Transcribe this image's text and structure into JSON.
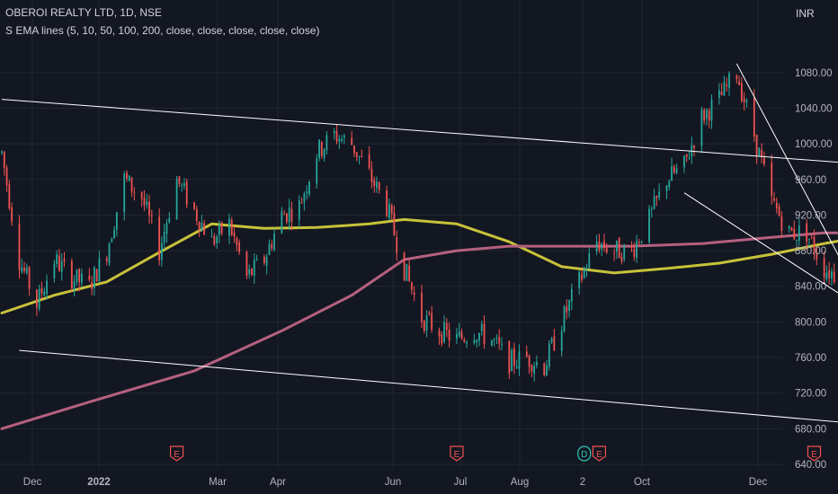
{
  "header": {
    "title": "OBEROI REALTY LTD, 1D, NSE",
    "indicator": "S EMA lines (5, 10, 50, 100, 200, close, close, close, close, close)",
    "currency": "INR"
  },
  "colors": {
    "background": "#131722",
    "grid": "#222631",
    "up": "#26a69a",
    "down": "#ef5350",
    "ema_yellow": "#c8c23a",
    "ema_pink": "#b5607f",
    "trendline": "#ffffff",
    "axis_text": "#b2b5be",
    "earnings": "#f0524f",
    "dividend": "#2cc5b5"
  },
  "chart_data": {
    "type": "candlestick",
    "symbol": "OBEROI REALTY LTD",
    "interval": "1D",
    "exchange": "NSE",
    "ylim": [
      640,
      1100
    ],
    "y_ticks": [
      "1080.00",
      "1040.00",
      "1000.00",
      "960.00",
      "920.00",
      "880.00",
      "840.00",
      "800.00",
      "760.00",
      "720.00",
      "680.00",
      "640.00"
    ],
    "x_ticks": [
      {
        "label": "Dec",
        "bold": false
      },
      {
        "label": "2022",
        "bold": true
      },
      {
        "label": "Mar",
        "bold": false
      },
      {
        "label": "Apr",
        "bold": false
      },
      {
        "label": "Jun",
        "bold": false
      },
      {
        "label": "Jul",
        "bold": false
      },
      {
        "label": "Aug",
        "bold": false
      },
      {
        "label": "2",
        "bold": false
      },
      {
        "label": "Oct",
        "bold": false
      },
      {
        "label": "Dec",
        "bold": false
      }
    ],
    "price_path": [
      [
        "2021-11-22",
        990
      ],
      [
        "2021-11-29",
        870
      ],
      [
        "2021-12-06",
        820
      ],
      [
        "2021-12-13",
        870
      ],
      [
        "2021-12-20",
        850
      ],
      [
        "2021-12-27",
        840
      ],
      [
        "2022-01-03",
        880
      ],
      [
        "2022-01-10",
        960
      ],
      [
        "2022-01-17",
        940
      ],
      [
        "2022-01-24",
        880
      ],
      [
        "2022-01-31",
        960
      ],
      [
        "2022-02-07",
        925
      ],
      [
        "2022-02-14",
        890
      ],
      [
        "2022-02-21",
        910
      ],
      [
        "2022-02-28",
        850
      ],
      [
        "2022-03-07",
        870
      ],
      [
        "2022-03-14",
        920
      ],
      [
        "2022-03-21",
        930
      ],
      [
        "2022-03-28",
        990
      ],
      [
        "2022-04-04",
        1010
      ],
      [
        "2022-04-11",
        1000
      ],
      [
        "2022-04-18",
        965
      ],
      [
        "2022-04-25",
        930
      ],
      [
        "2022-05-02",
        860
      ],
      [
        "2022-05-09",
        805
      ],
      [
        "2022-05-16",
        790
      ],
      [
        "2022-05-23",
        780
      ],
      [
        "2022-05-30",
        790
      ],
      [
        "2022-06-06",
        780
      ],
      [
        "2022-06-13",
        755
      ],
      [
        "2022-06-20",
        760
      ],
      [
        "2022-06-27",
        750
      ],
      [
        "2022-07-04",
        800
      ],
      [
        "2022-07-11",
        845
      ],
      [
        "2022-07-18",
        890
      ],
      [
        "2022-07-25",
        880
      ],
      [
        "2022-08-01",
        880
      ],
      [
        "2022-08-08",
        915
      ],
      [
        "2022-08-15",
        960
      ],
      [
        "2022-08-22",
        975
      ],
      [
        "2022-08-29",
        1030
      ],
      [
        "2022-09-05",
        1050
      ],
      [
        "2022-09-12",
        1080
      ],
      [
        "2022-09-19",
        1010
      ],
      [
        "2022-09-26",
        935
      ],
      [
        "2022-10-03",
        900
      ],
      [
        "2022-10-10",
        900
      ],
      [
        "2022-10-17",
        860
      ],
      [
        "2022-10-24",
        850
      ],
      [
        "2022-10-31",
        895
      ]
    ],
    "series": [
      {
        "name": "EMA 50",
        "color": "yellow",
        "points": [
          [
            "2021-11-22",
            810
          ],
          [
            "2021-12-13",
            830
          ],
          [
            "2022-01-03",
            845
          ],
          [
            "2022-01-24",
            878
          ],
          [
            "2022-02-14",
            910
          ],
          [
            "2022-03-07",
            905
          ],
          [
            "2022-03-28",
            906
          ],
          [
            "2022-04-18",
            910
          ],
          [
            "2022-05-02",
            915
          ],
          [
            "2022-05-23",
            910
          ],
          [
            "2022-06-13",
            890
          ],
          [
            "2022-07-04",
            862
          ],
          [
            "2022-07-25",
            855
          ],
          [
            "2022-08-15",
            860
          ],
          [
            "2022-09-05",
            866
          ],
          [
            "2022-09-26",
            876
          ],
          [
            "2022-10-17",
            888
          ],
          [
            "2022-10-31",
            895
          ]
        ]
      },
      {
        "name": "EMA 200",
        "color": "pink",
        "points": [
          [
            "2021-11-22",
            680
          ],
          [
            "2021-12-27",
            710
          ],
          [
            "2022-02-07",
            745
          ],
          [
            "2022-03-14",
            790
          ],
          [
            "2022-04-11",
            830
          ],
          [
            "2022-05-02",
            870
          ],
          [
            "2022-05-23",
            880
          ],
          [
            "2022-06-13",
            885
          ],
          [
            "2022-07-04",
            885
          ],
          [
            "2022-08-01",
            885
          ],
          [
            "2022-08-29",
            888
          ],
          [
            "2022-09-26",
            895
          ],
          [
            "2022-10-17",
            900
          ],
          [
            "2022-10-31",
            900
          ]
        ]
      }
    ],
    "trendlines": [
      [
        [
          "2021-11-22",
          1050
        ],
        [
          "2022-12-20",
          967
        ]
      ],
      [
        [
          "2021-11-29",
          768
        ],
        [
          "2022-12-01",
          678
        ]
      ],
      [
        [
          "2022-08-22",
          945
        ],
        [
          "2022-10-24",
          830
        ]
      ],
      [
        [
          "2022-09-12",
          1090
        ],
        [
          "2022-11-03",
          815
        ]
      ]
    ],
    "events": [
      {
        "date": "2022-01-31",
        "type": "E"
      },
      {
        "date": "2022-05-23",
        "type": "E"
      },
      {
        "date": "2022-07-13",
        "type": "D"
      },
      {
        "date": "2022-07-19",
        "type": "E"
      },
      {
        "date": "2022-10-13",
        "type": "E"
      }
    ]
  }
}
